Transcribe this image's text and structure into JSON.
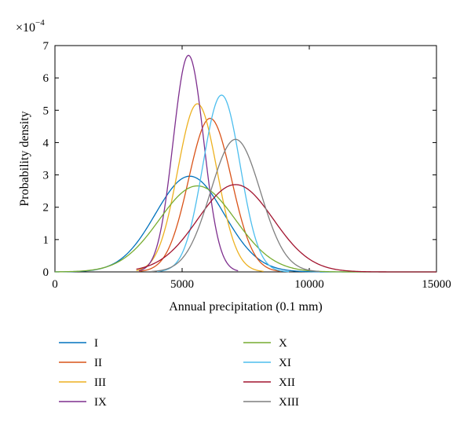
{
  "chart_data": {
    "type": "line",
    "xlabel": "Annual precipitation (0.1 mm)",
    "ylabel": "Probability density",
    "y_multiplier": "×10",
    "y_exponent": "−4",
    "xlim": [
      0,
      15000
    ],
    "ylim": [
      0,
      7
    ],
    "x_ticks": [
      "0",
      "5000",
      "10000",
      "15000"
    ],
    "y_ticks": [
      "0",
      "1",
      "2",
      "3",
      "4",
      "5",
      "6",
      "7"
    ],
    "grid": false,
    "legend_position": "bottom",
    "series": [
      {
        "name": "I",
        "color": "#0072BD",
        "shape": "normal",
        "mean": 5300,
        "sd": 1350,
        "peak": 2.96,
        "x_range": [
          0,
          15000
        ]
      },
      {
        "name": "II",
        "color": "#D95319",
        "shape": "normal",
        "mean": 6100,
        "sd": 840,
        "peak": 4.75,
        "x_range": [
          3300,
          8900
        ]
      },
      {
        "name": "III",
        "color": "#EDB120",
        "shape": "normal",
        "mean": 5600,
        "sd": 770,
        "peak": 5.2,
        "x_range": [
          3200,
          8200
        ]
      },
      {
        "name": "IX",
        "color": "#7E2F8E",
        "shape": "normal",
        "mean": 5250,
        "sd": 600,
        "peak": 6.7,
        "x_range": [
          3300,
          7200
        ]
      },
      {
        "name": "X",
        "color": "#77AC30",
        "shape": "normal",
        "mean": 5600,
        "sd": 1500,
        "peak": 2.66,
        "x_range": [
          0,
          15000
        ]
      },
      {
        "name": "XI",
        "color": "#4DBEEE",
        "shape": "normal",
        "mean": 6550,
        "sd": 730,
        "peak": 5.47,
        "x_range": [
          4000,
          9200
        ]
      },
      {
        "name": "XII",
        "color": "#A2142F",
        "shape": "normal",
        "mean": 7100,
        "sd": 1480,
        "peak": 2.7,
        "x_range": [
          3200,
          15000
        ]
      },
      {
        "name": "XIII",
        "color": "#7F7F7F",
        "shape": "normal",
        "mean": 7100,
        "sd": 980,
        "peak": 4.1,
        "x_range": [
          3800,
          10400
        ]
      }
    ]
  }
}
